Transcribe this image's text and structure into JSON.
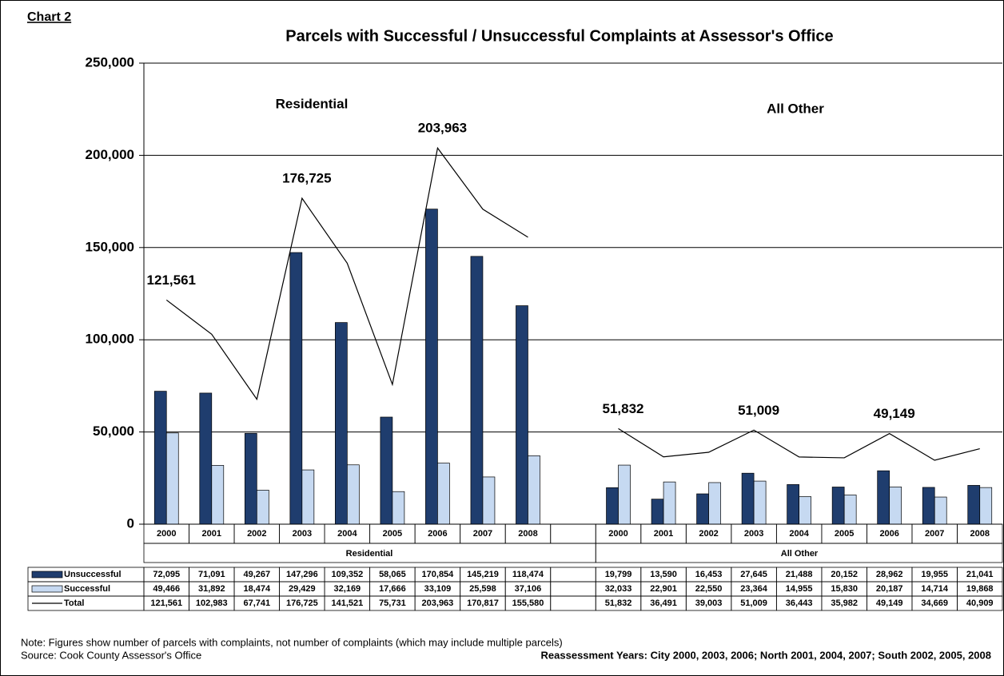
{
  "chart_data": {
    "type": "bar",
    "chart_label": "Chart 2",
    "title": "Parcels with Successful / Unsuccessful Complaints at Assessor's Office",
    "annotations": [
      "Residential",
      "All Other"
    ],
    "table_groups": [
      "Residential",
      "All Other"
    ],
    "categories": [
      "2000",
      "2001",
      "2002",
      "2003",
      "2004",
      "2005",
      "2006",
      "2007",
      "2008",
      null,
      "2000",
      "2001",
      "2002",
      "2003",
      "2004",
      "2005",
      "2006",
      "2007",
      "2008"
    ],
    "series": [
      {
        "name": "Unsuccessful",
        "color": "#1f3d6e",
        "kind": "bar",
        "values": [
          72095,
          71091,
          49267,
          147296,
          109352,
          58065,
          170854,
          145219,
          118474,
          null,
          19799,
          13590,
          16453,
          27645,
          21488,
          20152,
          28962,
          19955,
          21041
        ],
        "value_labels": [
          "72,095",
          "71,091",
          "49,267",
          "147,296",
          "109,352",
          "58,065",
          "170,854",
          "145,219",
          "118,474",
          null,
          "19,799",
          "13,590",
          "16,453",
          "27,645",
          "21,488",
          "20,152",
          "28,962",
          "19,955",
          "21,041"
        ]
      },
      {
        "name": "Successful",
        "color": "#c6d9f1",
        "kind": "bar",
        "values": [
          49466,
          31892,
          18474,
          29429,
          32169,
          17666,
          33109,
          25598,
          37106,
          null,
          32033,
          22901,
          22550,
          23364,
          14955,
          15830,
          20187,
          14714,
          19868
        ],
        "value_labels": [
          "49,466",
          "31,892",
          "18,474",
          "29,429",
          "32,169",
          "17,666",
          "33,109",
          "25,598",
          "37,106",
          null,
          "32,033",
          "22,901",
          "22,550",
          "23,364",
          "14,955",
          "15,830",
          "20,187",
          "14,714",
          "19,868"
        ]
      },
      {
        "name": "Total",
        "color": "#000000",
        "kind": "line",
        "values": [
          121561,
          102983,
          67741,
          176725,
          141521,
          75731,
          203963,
          170817,
          155580,
          null,
          51832,
          36491,
          39003,
          51009,
          36443,
          35982,
          49149,
          34669,
          40909
        ],
        "value_labels": [
          "121,561",
          "102,983",
          "67,741",
          "176,725",
          "141,521",
          "75,731",
          "203,963",
          "170,817",
          "155,580",
          null,
          "51,832",
          "36,491",
          "39,003",
          "51,009",
          "36,443",
          "35,982",
          "49,149",
          "34,669",
          "40,909"
        ],
        "point_labels": [
          "121,561",
          null,
          null,
          "176,725",
          null,
          null,
          "203,963",
          null,
          null,
          null,
          "51,832",
          null,
          null,
          "51,009",
          null,
          null,
          "49,149",
          null,
          null
        ]
      }
    ],
    "ylim": [
      0,
      250000
    ],
    "yticks": [
      0,
      {
        "value": 50000,
        "label": "50,000"
      },
      {
        "value": 100000,
        "label": "100,000"
      },
      {
        "value": 150000,
        "label": "150,000"
      },
      {
        "value": 200000,
        "label": "200,000"
      },
      {
        "value": 250000,
        "label": "250,000"
      }
    ],
    "grid": true,
    "note": "Note: Figures show number of parcels with complaints, not number of complaints (which may include  multiple parcels)",
    "source": "Source: Cook County Assessor's Office",
    "footnote": "Reassessment Years: City 2000, 2003, 2006; North 2001, 2004, 2007; South 2002, 2005, 2008"
  }
}
